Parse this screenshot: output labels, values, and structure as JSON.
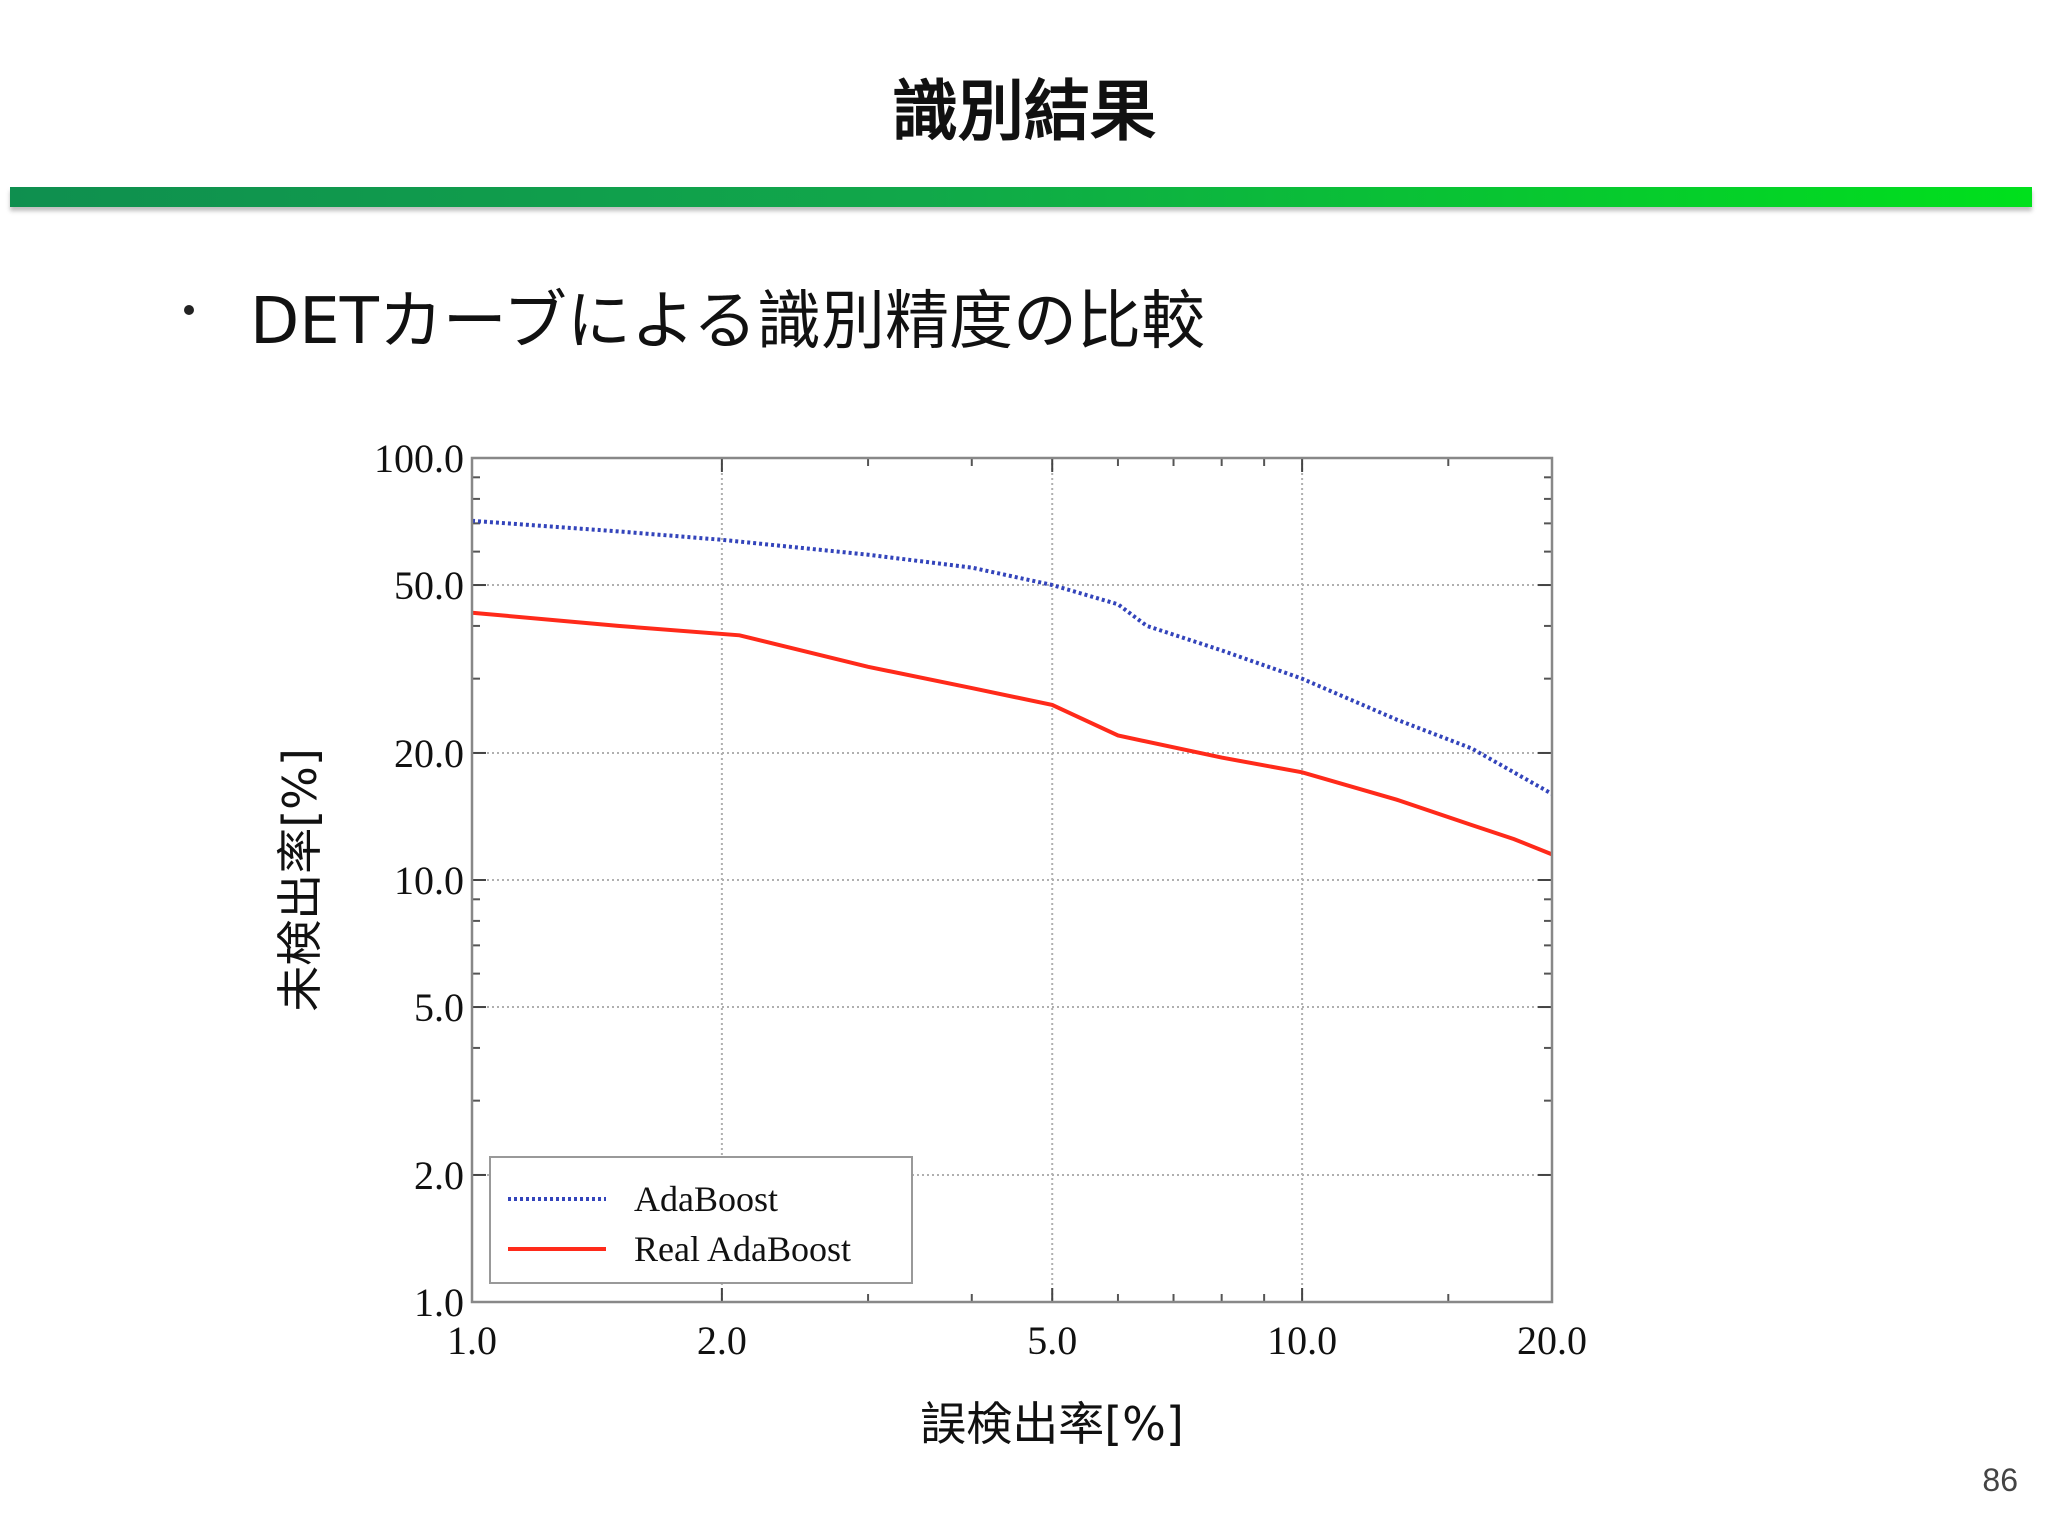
{
  "slide": {
    "title": "識別結果",
    "bullet": "DETカーブによる識別精度の比較",
    "page_number": "86"
  },
  "colors": {
    "title_bar_start": "#0f8f4f",
    "title_bar_end": "#00e01c",
    "adaboost": "#3344bb",
    "real_adaboost": "#ff2a1a",
    "grid": "#b0b0b0"
  },
  "chart_data": {
    "type": "line",
    "xlabel": "誤検出率[%]",
    "ylabel": "未検出率[%]",
    "xscale": "log",
    "yscale": "log",
    "xlim": [
      1.0,
      20.0
    ],
    "ylim": [
      1.0,
      100.0
    ],
    "x_ticks": [
      1.0,
      2.0,
      5.0,
      10.0,
      20.0
    ],
    "x_tick_labels": [
      "1.0",
      "2.0",
      "5.0",
      "10.0",
      "20.0"
    ],
    "y_ticks": [
      1.0,
      2.0,
      5.0,
      10.0,
      20.0,
      50.0,
      100.0
    ],
    "y_tick_labels": [
      "1.0",
      "2.0",
      "5.0",
      "10.0",
      "20.0",
      "50.0",
      "100.0"
    ],
    "grid": true,
    "legend_position": "lower-left",
    "series": [
      {
        "name": "AdaBoost",
        "style": "dotted",
        "color": "#3344bb",
        "x": [
          1.0,
          1.5,
          2.0,
          3.0,
          4.0,
          5.0,
          6.0,
          6.5,
          8.0,
          10.0,
          13.0,
          16.0,
          20.0
        ],
        "y": [
          71,
          67,
          64,
          59,
          55,
          50,
          45,
          40,
          35,
          30,
          24,
          20.5,
          16
        ]
      },
      {
        "name": "Real AdaBoost",
        "style": "solid",
        "color": "#ff2a1a",
        "x": [
          1.0,
          1.5,
          2.1,
          3.0,
          4.0,
          5.0,
          6.0,
          8.0,
          10.0,
          13.0,
          16.0,
          18.0,
          20.0
        ],
        "y": [
          43,
          40,
          38,
          32,
          28.5,
          26,
          22,
          19.5,
          18,
          15.5,
          13.5,
          12.5,
          11.5
        ]
      }
    ]
  }
}
